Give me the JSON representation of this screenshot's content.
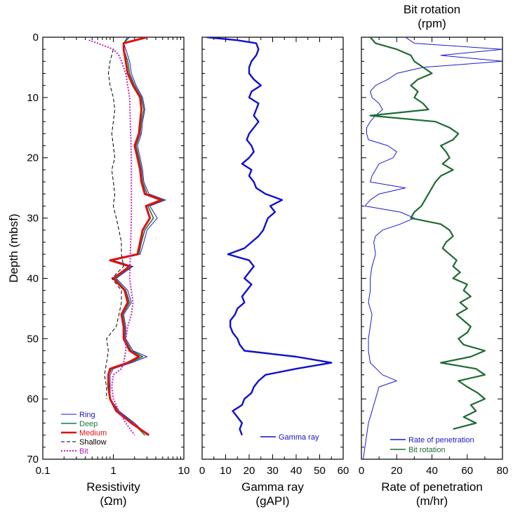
{
  "colors": {
    "ring": "#1a1acc",
    "deep": "#1a7a3c",
    "medium": "#e01010",
    "shallow": "#000000",
    "bit": "#c020c0",
    "gamma": "#1010cc",
    "rop": "#1a1acc",
    "rot": "#1f6b34"
  },
  "chart_data": [
    {
      "type": "line",
      "xlabel": "Resistivity",
      "xunit": "(Ωm)",
      "ylabel": "Depth (mbsf)",
      "xscale": "log",
      "xlim": [
        0.1,
        10
      ],
      "ylim": [
        0,
        70
      ],
      "y_inverted": true,
      "xticks": [
        "0.1",
        "1",
        "10"
      ],
      "yticks": [
        "0",
        "10",
        "20",
        "30",
        "40",
        "50",
        "60",
        "70"
      ],
      "legend": "bottom-left",
      "series": [
        {
          "name": "Ring",
          "color": "#1a1acc",
          "style": "thin",
          "depth": [
            0,
            1,
            2,
            4,
            6,
            8,
            10,
            12,
            14,
            16,
            18,
            20,
            22,
            24,
            26,
            27,
            28,
            30,
            32,
            34,
            36,
            37,
            38,
            40,
            42,
            44,
            46,
            48,
            50,
            52,
            53,
            54,
            55,
            56,
            58,
            60,
            62,
            64,
            66
          ],
          "values": [
            1.7,
            1.4,
            1.5,
            1.7,
            1.8,
            2.1,
            2.6,
            2.8,
            2.6,
            2.5,
            2.2,
            2.4,
            2.6,
            2.7,
            3.2,
            5.5,
            3.3,
            4.2,
            3.0,
            2.7,
            2.4,
            1.0,
            1.9,
            1.1,
            1.6,
            1.8,
            1.4,
            1.5,
            1.5,
            1.9,
            3.0,
            1.8,
            1.0,
            0.9,
            0.9,
            0.9,
            1.2,
            2.0,
            3.0
          ]
        },
        {
          "name": "Deep",
          "color": "#1a7a3c",
          "style": "medium",
          "depth": [
            0,
            1,
            2,
            4,
            6,
            8,
            10,
            12,
            14,
            16,
            18,
            20,
            22,
            24,
            26,
            27,
            28,
            30,
            32,
            34,
            36,
            37,
            38,
            40,
            42,
            44,
            46,
            48,
            50,
            52,
            53,
            54,
            55,
            56,
            58,
            60,
            62,
            64,
            66
          ],
          "values": [
            1.6,
            1.4,
            1.4,
            1.6,
            1.7,
            2.0,
            2.5,
            2.7,
            2.5,
            2.4,
            2.1,
            2.3,
            2.5,
            2.6,
            3.0,
            5.2,
            3.1,
            3.7,
            2.8,
            2.5,
            2.3,
            0.95,
            1.8,
            1.05,
            1.5,
            1.7,
            1.35,
            1.45,
            1.45,
            1.8,
            2.6,
            1.7,
            0.95,
            0.85,
            0.88,
            0.9,
            1.15,
            1.9,
            2.8
          ]
        },
        {
          "name": "Medium",
          "color": "#e01010",
          "style": "thick",
          "depth": [
            0,
            1,
            2,
            4,
            6,
            8,
            10,
            12,
            14,
            16,
            18,
            20,
            22,
            24,
            26,
            27,
            28,
            30,
            32,
            34,
            36,
            37,
            38,
            40,
            42,
            44,
            46,
            48,
            50,
            52,
            53,
            54,
            55,
            56,
            58,
            60,
            62,
            64,
            66
          ],
          "values": [
            3.0,
            1.4,
            1.4,
            1.5,
            1.6,
            1.9,
            2.4,
            2.5,
            2.4,
            2.3,
            2.0,
            2.2,
            2.4,
            2.5,
            2.8,
            4.8,
            2.9,
            3.3,
            2.6,
            2.4,
            2.2,
            0.9,
            1.7,
            1.0,
            1.45,
            1.6,
            1.3,
            1.4,
            1.4,
            1.7,
            2.3,
            1.6,
            0.9,
            0.85,
            0.85,
            0.9,
            1.1,
            1.8,
            3.2
          ]
        },
        {
          "name": "Shallow",
          "color": "#000000",
          "style": "dashed",
          "depth": [
            2,
            4,
            6,
            8,
            10,
            12,
            14,
            16,
            18,
            20,
            22,
            24,
            26,
            28,
            30,
            32,
            34,
            36,
            38,
            40,
            42,
            44,
            46,
            48,
            50,
            52,
            54,
            56,
            58,
            60
          ],
          "values": [
            1.0,
            0.9,
            0.85,
            0.9,
            1.0,
            1.05,
            1.0,
            0.95,
            1.0,
            1.05,
            0.95,
            1.0,
            1.05,
            1.0,
            1.1,
            1.2,
            1.3,
            1.3,
            1.4,
            0.95,
            1.3,
            1.3,
            1.2,
            1.1,
            0.8,
            0.85,
            0.8,
            0.75,
            0.8,
            0.8
          ]
        },
        {
          "name": "Bit",
          "color": "#c020c0",
          "style": "dotted",
          "depth": [
            0.5,
            1,
            2,
            3,
            4,
            6,
            10,
            20,
            30,
            40,
            44,
            46,
            48,
            50,
            52,
            54,
            55,
            56,
            58,
            60,
            62,
            64,
            66
          ],
          "values": [
            0.45,
            0.6,
            1.0,
            1.2,
            1.3,
            1.5,
            1.7,
            1.8,
            1.8,
            1.7,
            1.9,
            1.8,
            1.6,
            1.5,
            1.5,
            1.4,
            1.3,
            1.0,
            0.95,
            1.0,
            1.2,
            1.5,
            2.0
          ]
        }
      ]
    },
    {
      "type": "line",
      "xlabel": "Gamma ray",
      "xunit": "(gAPI)",
      "xlim": [
        0,
        60
      ],
      "ylim": [
        0,
        70
      ],
      "y_inverted": true,
      "xticks": [
        "0",
        "10",
        "20",
        "30",
        "40",
        "50",
        "60"
      ],
      "legend": "bottom-right",
      "series": [
        {
          "name": "Gamma ray",
          "color": "#1010cc",
          "depth": [
            0,
            0.5,
            1,
            2,
            3,
            4,
            5,
            6,
            7,
            8,
            9,
            10,
            11,
            12,
            13,
            14,
            15,
            16,
            17,
            18,
            19,
            20,
            21,
            22,
            23,
            24,
            25,
            26,
            27,
            28,
            29,
            30,
            31,
            32,
            33,
            34,
            35,
            36,
            37,
            38,
            39,
            40,
            41,
            42,
            43,
            44,
            45,
            46,
            47,
            48,
            49,
            50,
            51,
            52,
            53,
            54,
            55,
            56,
            57,
            58,
            59,
            60,
            61,
            62,
            63,
            64,
            65,
            66
          ],
          "values": [
            2,
            15,
            23,
            24,
            23,
            21,
            20,
            20,
            22,
            25,
            21,
            20,
            24,
            23,
            22,
            24,
            22,
            20,
            19,
            21,
            22,
            20,
            17,
            21,
            20,
            22,
            23,
            27,
            34,
            29,
            31,
            28,
            27,
            26,
            24,
            21,
            18,
            11,
            20,
            22,
            20,
            18,
            21,
            19,
            17,
            18,
            15,
            14,
            12,
            12,
            13,
            15,
            16,
            18,
            40,
            55,
            40,
            27,
            24,
            22,
            21,
            18,
            17,
            13,
            15,
            17,
            16,
            17
          ]
        }
      ]
    },
    {
      "type": "line",
      "xlabel": "Rate of penetration",
      "xunit": "(m/hr)",
      "toplabel": "Bit rotation",
      "topunit": "(rpm)",
      "xlim": [
        0,
        80
      ],
      "ylim": [
        0,
        70
      ],
      "y_inverted": true,
      "xticks": [
        "0",
        "20",
        "40",
        "60",
        "80"
      ],
      "legend": "bottom-right",
      "series": [
        {
          "name": "Rate of penetration",
          "color": "#1a1acc",
          "depth": [
            0,
            1,
            2,
            3,
            4,
            5,
            6,
            7,
            8,
            9,
            10,
            11,
            12,
            13,
            14,
            15,
            16,
            17,
            18,
            19,
            20,
            21,
            22,
            23,
            24,
            25,
            26,
            27,
            28,
            29,
            30,
            31,
            32,
            33,
            34,
            36,
            38,
            40,
            42,
            44,
            46,
            48,
            50,
            52,
            54,
            56,
            57,
            58,
            60,
            62,
            64,
            66,
            68,
            70
          ],
          "values": [
            25,
            30,
            80,
            45,
            80,
            35,
            20,
            15,
            8,
            5,
            6,
            10,
            12,
            8,
            5,
            3,
            3,
            4,
            15,
            20,
            18,
            10,
            8,
            6,
            5,
            25,
            10,
            5,
            2,
            22,
            30,
            22,
            12,
            8,
            7,
            8,
            6,
            5,
            5,
            4,
            6,
            5,
            4,
            4,
            5,
            12,
            20,
            10,
            8,
            6,
            4,
            3,
            2,
            1
          ]
        },
        {
          "name": "Bit rotation",
          "color": "#1f6b34",
          "depth": [
            0,
            1,
            2,
            3,
            4,
            5,
            6,
            7,
            8,
            9,
            10,
            11,
            12,
            13,
            14,
            15,
            16,
            17,
            18,
            19,
            20,
            21,
            22,
            23,
            24,
            25,
            26,
            27,
            28,
            29,
            30,
            31,
            32,
            33,
            34,
            35,
            36,
            37,
            38,
            39,
            40,
            41,
            42,
            43,
            44,
            45,
            46,
            47,
            48,
            49,
            50,
            51,
            52,
            53,
            54,
            55,
            56,
            57,
            58,
            59,
            60,
            61,
            62,
            63,
            64,
            65
          ],
          "values": [
            5,
            8,
            20,
            28,
            30,
            35,
            40,
            32,
            28,
            32,
            30,
            35,
            38,
            5,
            42,
            50,
            55,
            52,
            45,
            48,
            50,
            46,
            52,
            45,
            42,
            40,
            38,
            36,
            34,
            30,
            28,
            45,
            50,
            52,
            48,
            46,
            50,
            54,
            52,
            56,
            52,
            60,
            58,
            62,
            56,
            60,
            54,
            58,
            62,
            60,
            55,
            58,
            70,
            62,
            45,
            65,
            70,
            55,
            60,
            66,
            70,
            62,
            65,
            58,
            65,
            52
          ]
        }
      ]
    }
  ]
}
